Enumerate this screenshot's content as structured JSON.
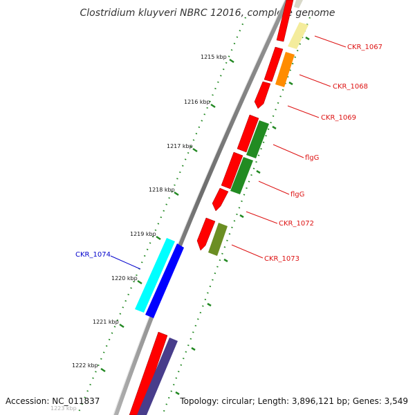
{
  "title": "Clostridium kluyveri NBRC 12016, complete genome",
  "footer": {
    "accession": "Accession: NC_011837",
    "summary": "Topology: circular; Length: 3,896,121 bp; Genes: 3,549"
  },
  "ticks": [
    {
      "label": "1215 kbp"
    },
    {
      "label": "1216 kbp"
    },
    {
      "label": "1217 kbp"
    },
    {
      "label": "1218 kbp"
    },
    {
      "label": "1219 kbp"
    },
    {
      "label": "1220 kbp"
    },
    {
      "label": "1221 kbp"
    },
    {
      "label": "1222 kbp"
    },
    {
      "label": "1223 kbp"
    }
  ],
  "gene_labels": [
    {
      "name": "CKR_1067",
      "color": "#dd1111"
    },
    {
      "name": "CKR_1068",
      "color": "#dd1111"
    },
    {
      "name": "CKR_1069",
      "color": "#dd1111"
    },
    {
      "name": "flgG",
      "color": "#dd1111"
    },
    {
      "name": "flgG",
      "color": "#dd1111"
    },
    {
      "name": "CKR_1072",
      "color": "#dd1111"
    },
    {
      "name": "CKR_1073",
      "color": "#dd1111"
    },
    {
      "name": "CKR_1074",
      "color": "#0000cc"
    }
  ],
  "colors": {
    "backbone": "#808080",
    "cds": "#ff0000",
    "tick": "#228822",
    "label_red": "#dd1111",
    "label_blue": "#0000cc",
    "cog_yellow": "#f4ec9c",
    "cog_orange": "#ff8c00",
    "cog_green": "#228b22",
    "cog_olive": "#6b8e23",
    "cog_cyan": "#00ffff",
    "cog_blue": "#0000ff",
    "cog_purple": "#483d8b"
  }
}
